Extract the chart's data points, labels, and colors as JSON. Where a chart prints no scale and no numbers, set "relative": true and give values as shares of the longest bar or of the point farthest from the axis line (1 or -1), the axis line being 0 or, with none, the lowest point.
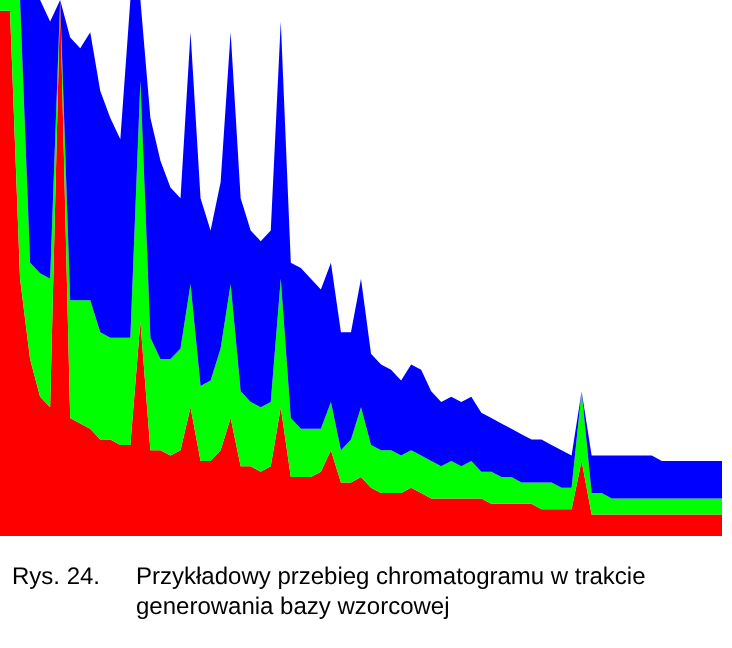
{
  "chart_data": {
    "type": "area",
    "relative": true,
    "stacked": true,
    "categories": [
      null,
      null,
      null,
      null,
      null,
      null,
      null,
      null,
      null,
      null,
      null,
      null,
      null,
      null,
      null,
      null,
      null,
      null,
      null,
      null,
      null,
      null,
      null,
      null,
      null,
      null,
      null,
      null,
      null,
      null,
      null,
      null,
      null,
      null,
      null,
      null,
      null,
      null,
      null,
      null,
      null,
      null,
      null,
      null,
      null,
      null,
      null,
      null,
      null,
      null,
      null,
      null,
      null,
      null,
      null,
      null,
      null,
      null,
      null,
      null,
      null,
      null,
      null,
      null,
      null,
      null,
      null,
      null,
      null,
      null,
      null,
      null,
      null
    ],
    "series": [
      {
        "color": "#ff0000",
        "values": [
          0.98,
          0.98,
          0.48,
          0.33,
          0.26,
          0.24,
          1,
          0.22,
          0.21,
          0.2,
          0.18,
          0.18,
          0.17,
          0.17,
          0.4,
          0.16,
          0.16,
          0.15,
          0.16,
          0.24,
          0.14,
          0.14,
          0.16,
          0.22,
          0.13,
          0.13,
          0.12,
          0.13,
          0.24,
          0.11,
          0.11,
          0.11,
          0.12,
          0.16,
          0.1,
          0.1,
          0.11,
          0.09,
          0.08,
          0.08,
          0.08,
          0.09,
          0.08,
          0.07,
          0.07,
          0.07,
          0.07,
          0.07,
          0.07,
          0.06,
          0.06,
          0.06,
          0.06,
          0.06,
          0.05,
          0.05,
          0.05,
          0.05,
          0.14,
          0.04,
          0.04,
          0.04,
          0.04,
          0.04,
          0.04,
          0.04,
          0.04,
          0.04,
          0.04,
          0.04,
          0.04,
          0.04,
          0.04
        ]
      },
      {
        "color": "#00ff00",
        "values": [
          0.02,
          0.02,
          0.52,
          0.18,
          0.23,
          0.24,
          0,
          0.22,
          0.23,
          0.24,
          0.2,
          0.19,
          0.2,
          0.2,
          0.45,
          0.21,
          0.17,
          0.18,
          0.19,
          0.23,
          0.14,
          0.15,
          0.19,
          0.25,
          0.14,
          0.12,
          0.12,
          0.12,
          0.24,
          0.11,
          0.09,
          0.09,
          0.08,
          0.09,
          0.06,
          0.08,
          0.13,
          0.08,
          0.08,
          0.08,
          0.07,
          0.07,
          0.07,
          0.07,
          0.06,
          0.07,
          0.06,
          0.07,
          0.05,
          0.06,
          0.05,
          0.05,
          0.04,
          0.04,
          0.05,
          0.05,
          0.04,
          0.04,
          0.13,
          0.04,
          0.04,
          0.03,
          0.03,
          0.03,
          0.03,
          0.03,
          0.03,
          0.03,
          0.03,
          0.03,
          0.03,
          0.03,
          0.03
        ]
      },
      {
        "color": "#0000ff",
        "values": [
          0,
          0,
          0,
          0.49,
          0.51,
          0.48,
          0,
          0.49,
          0.47,
          0.5,
          0.45,
          0.41,
          0.37,
          0.63,
          0.15,
          0.41,
          0.37,
          0.32,
          0.28,
          0.47,
          0.35,
          0.28,
          0.31,
          0.47,
          0.36,
          0.32,
          0.31,
          0.32,
          0.48,
          0.29,
          0.3,
          0.28,
          0.26,
          0.26,
          0.22,
          0.2,
          0.24,
          0.17,
          0.16,
          0.15,
          0.14,
          0.16,
          0.16,
          0.13,
          0.12,
          0.12,
          0.12,
          0.12,
          0.11,
          0.1,
          0.1,
          0.09,
          0.09,
          0.08,
          0.08,
          0.07,
          0.07,
          0.06,
          0,
          0.07,
          0.07,
          0.08,
          0.08,
          0.08,
          0.08,
          0.08,
          0.07,
          0.07,
          0.07,
          0.07,
          0.07,
          0.07,
          0.07
        ]
      }
    ],
    "annotations": [
      "Rys. 24.",
      "Przykładowy przebieg chromatogramu w trakcie generowania bazy wzorcowej"
    ]
  }
}
